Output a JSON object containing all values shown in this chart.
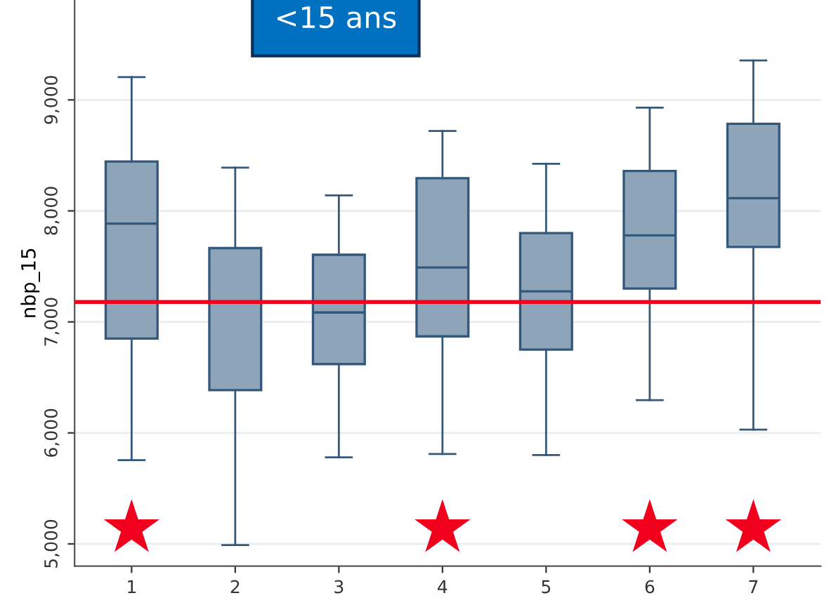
{
  "chart_data": {
    "type": "box",
    "title": "<15 ans",
    "ylabel": "nbp_15",
    "categories": [
      "1",
      "2",
      "3",
      "4",
      "5",
      "6",
      "7"
    ],
    "series": [
      {
        "color": "#8ea4b8",
        "boxes": [
          {
            "low": 5755,
            "q1": 6850,
            "median": 7885,
            "q3": 8445,
            "high": 9205
          },
          {
            "low": 4990,
            "q1": 6385,
            "median": 7180,
            "q3": 7665,
            "high": 8390
          },
          {
            "low": 5780,
            "q1": 6620,
            "median": 7085,
            "q3": 7605,
            "high": 8140
          },
          {
            "low": 5810,
            "q1": 6870,
            "median": 7490,
            "q3": 8295,
            "high": 8720
          },
          {
            "low": 5800,
            "q1": 6750,
            "median": 7275,
            "q3": 7800,
            "high": 8425
          },
          {
            "low": 6295,
            "q1": 7300,
            "median": 7780,
            "q3": 8360,
            "high": 8930
          },
          {
            "low": 6030,
            "q1": 7675,
            "median": 8115,
            "q3": 8785,
            "high": 9355
          }
        ]
      },
      {
        "type": "scatter",
        "color": "#f0001c",
        "marker": "star",
        "x": [
          "1",
          "4",
          "6",
          "7"
        ],
        "values": [
          5140,
          5140,
          5140,
          5140
        ]
      }
    ],
    "ylim": [
      4800,
      9900
    ],
    "yticks": [
      {
        "value": 5000,
        "label": "5,000"
      },
      {
        "value": 6000,
        "label": "6,000"
      },
      {
        "value": 7000,
        "label": "7,000"
      },
      {
        "value": 8000,
        "label": "8,000"
      },
      {
        "value": 9000,
        "label": "9,000"
      }
    ],
    "ref_lines": [
      {
        "axis": "y",
        "value": 7180,
        "color": "#f0001c"
      }
    ],
    "grid": "y",
    "legend": false
  }
}
